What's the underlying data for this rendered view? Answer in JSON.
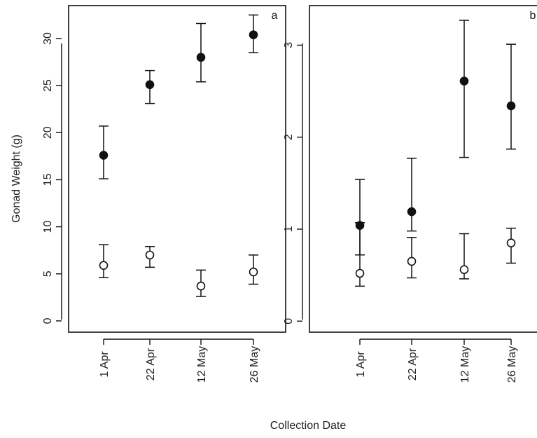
{
  "figure": {
    "ylabel": "Gonad Weight (g)",
    "xlabel": "Collection Date"
  },
  "chart_data": [
    {
      "type": "scatter",
      "panel": "a",
      "categories": [
        "1 Apr",
        "22 Apr",
        "12 May",
        "26 May"
      ],
      "ylim": [
        -1.2,
        33.5
      ],
      "yticks": [
        0,
        5,
        10,
        15,
        20,
        25,
        30
      ],
      "series": [
        {
          "marker": "filled",
          "values": [
            17.6,
            25.1,
            28.0,
            30.4
          ],
          "lower": [
            15.1,
            23.1,
            25.4,
            28.5
          ],
          "upper": [
            20.7,
            26.6,
            31.6,
            32.5
          ]
        },
        {
          "marker": "open",
          "values": [
            5.9,
            7.0,
            3.7,
            5.2
          ],
          "lower": [
            4.6,
            5.7,
            2.6,
            3.9
          ],
          "upper": [
            8.1,
            7.9,
            5.4,
            7.0
          ]
        }
      ]
    },
    {
      "type": "scatter",
      "panel": "b",
      "categories": [
        "1 Apr",
        "22 Apr",
        "12 May",
        "26 May"
      ],
      "ylim": [
        -0.12,
        3.43
      ],
      "yticks": [
        0,
        1,
        2,
        3
      ],
      "series": [
        {
          "marker": "filled",
          "values": [
            1.04,
            1.19,
            2.61,
            2.34
          ],
          "lower": [
            0.72,
            0.98,
            1.78,
            1.87
          ],
          "upper": [
            1.54,
            1.77,
            3.27,
            3.01
          ]
        },
        {
          "marker": "open",
          "values": [
            0.52,
            0.65,
            0.56,
            0.85
          ],
          "lower": [
            0.38,
            0.47,
            0.46,
            0.63
          ],
          "upper": [
            1.07,
            0.91,
            0.95,
            1.01
          ]
        }
      ]
    }
  ]
}
